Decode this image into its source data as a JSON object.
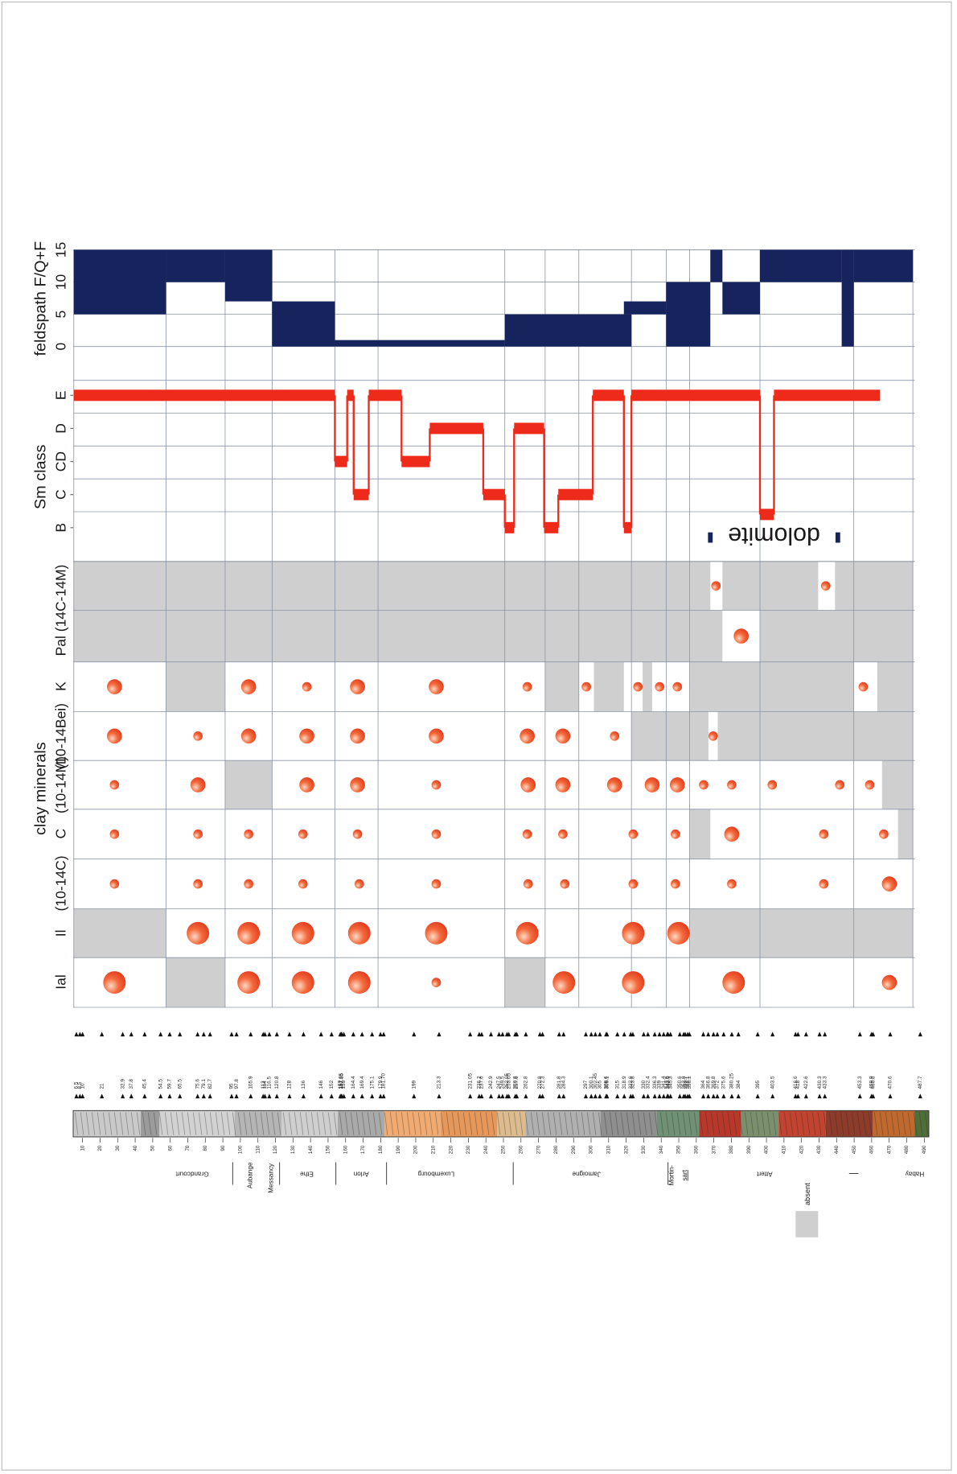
{
  "feldspath": {
    "label": "feldspath F/Q+F",
    "ylim": [
      0,
      15
    ],
    "yticks": [
      0,
      5,
      10,
      15
    ],
    "color": "#17235c",
    "segments": [
      {
        "from": 5,
        "to": 57.6,
        "min": 5,
        "max": 15
      },
      {
        "from": 57.6,
        "to": 91.3,
        "min": 10,
        "max": 15
      },
      {
        "from": 91.3,
        "to": 118.1,
        "min": 7,
        "max": 15
      },
      {
        "from": 118.1,
        "to": 153.9,
        "min": 0,
        "max": 7
      },
      {
        "from": 153.9,
        "to": 250.8,
        "min": 0,
        "max": 1
      },
      {
        "from": 250.8,
        "to": 323,
        "min": 0,
        "max": 5
      },
      {
        "from": 318.7,
        "to": 342.8,
        "min": 5,
        "max": 7
      },
      {
        "from": 342.8,
        "to": 368,
        "min": 0,
        "max": 10
      },
      {
        "from": 368,
        "to": 374.9,
        "min": 10,
        "max": 15
      },
      {
        "from": 374.9,
        "to": 396.3,
        "min": 5,
        "max": 10
      },
      {
        "from": 396.3,
        "to": 442.9,
        "min": 10,
        "max": 15
      },
      {
        "from": 442.9,
        "to": 449.8,
        "min": 0,
        "max": 15
      },
      {
        "from": 449.8,
        "to": 483.5,
        "min": 10,
        "max": 15
      }
    ]
  },
  "sm_class": {
    "label": "Sm class",
    "ylim": [
      0,
      4
    ],
    "yticks": [
      {
        "value": 0,
        "label": "B"
      },
      {
        "value": 1,
        "label": "C"
      },
      {
        "value": 2,
        "label": "CD"
      },
      {
        "value": 3,
        "label": "D"
      },
      {
        "value": 4,
        "label": "E"
      }
    ],
    "color": "#ee2a1b",
    "steps": [
      {
        "from": 5,
        "to": 153.9,
        "value": 4
      },
      {
        "from": 153.9,
        "to": 160.9,
        "value": 2
      },
      {
        "from": 160.9,
        "to": 164.6,
        "value": 4
      },
      {
        "from": 164.6,
        "to": 173.2,
        "value": 1
      },
      {
        "from": 173.2,
        "to": 191.9,
        "value": 4
      },
      {
        "from": 191.9,
        "to": 208,
        "value": 2
      },
      {
        "from": 208,
        "to": 238.5,
        "value": 3
      },
      {
        "from": 238.5,
        "to": 250.8,
        "value": 1
      },
      {
        "from": 250.8,
        "to": 256.1,
        "value": 0
      },
      {
        "from": 256.1,
        "to": 273.2,
        "value": 3
      },
      {
        "from": 273.2,
        "to": 281.3,
        "value": 0
      },
      {
        "from": 281.3,
        "to": 301,
        "value": 1
      },
      {
        "from": 301,
        "to": 318.7,
        "value": 4
      },
      {
        "from": 318.7,
        "to": 323,
        "value": 0
      },
      {
        "from": 323,
        "to": 396.3,
        "value": 4
      },
      {
        "from": 396.3,
        "to": 404.3,
        "value": 0.4
      },
      {
        "from": 404.3,
        "to": 464.8,
        "value": 4
      }
    ],
    "annotation": "dolomite",
    "annotation_range": [
      368,
      440.7
    ],
    "annotation_color": "#17235c"
  },
  "clay": {
    "label": "clay minerals",
    "rows": [
      {
        "name": "Pal (14C-14M)",
        "absent": [
          [
            5,
            368
          ],
          [
            374.9,
            429.5
          ],
          [
            439.1,
            483.5
          ]
        ],
        "points": [
          [
            371.2,
            1
          ],
          [
            433.8,
            1
          ]
        ]
      },
      {
        "name": null,
        "absent": [
          [
            5,
            374.9
          ],
          [
            396.3,
            483.5
          ]
        ],
        "points": [
          [
            385.6,
            2
          ]
        ]
      },
      {
        "name": "K",
        "absent": [
          [
            57.6,
            91.3
          ],
          [
            273.8,
            293
          ],
          [
            301.6,
            318.7
          ],
          [
            329.4,
            334.8
          ],
          [
            356.2,
            449.8
          ],
          [
            463.2,
            483.5
          ]
        ],
        "points": [
          [
            28.2,
            2
          ],
          [
            104.7,
            2
          ],
          [
            137.9,
            1
          ],
          [
            166.8,
            2
          ],
          [
            211.7,
            2
          ],
          [
            263.6,
            1
          ],
          [
            297.3,
            1
          ],
          [
            326.7,
            1
          ],
          [
            339.1,
            1
          ],
          [
            349.2,
            1
          ],
          [
            455.2,
            1
          ]
        ]
      },
      {
        "name": "(10-14Bei)",
        "absent": [
          [
            323,
            366.9
          ],
          [
            372.2,
            483.5
          ]
        ],
        "points": [
          [
            28.2,
            2
          ],
          [
            75.8,
            1
          ],
          [
            104.7,
            2
          ],
          [
            137.9,
            2
          ],
          [
            166.8,
            2
          ],
          [
            211.7,
            2
          ],
          [
            263.6,
            2
          ],
          [
            283.9,
            2
          ],
          [
            313.4,
            1
          ],
          [
            369.6,
            1
          ]
        ]
      },
      {
        "name": "(10-14M)",
        "absent": [
          [
            91.3,
            118.1
          ],
          [
            465.9,
            483.5
          ]
        ],
        "points": [
          [
            28.2,
            1
          ],
          [
            75.8,
            2
          ],
          [
            137.9,
            2
          ],
          [
            166.8,
            2
          ],
          [
            211.7,
            1
          ],
          [
            264.1,
            2
          ],
          [
            283.9,
            2
          ],
          [
            313.4,
            2
          ],
          [
            334.8,
            2
          ],
          [
            349.2,
            2
          ],
          [
            364.2,
            1
          ],
          [
            380.2,
            1
          ],
          [
            403.3,
            1
          ],
          [
            441.8,
            1
          ],
          [
            458.9,
            1
          ]
        ]
      },
      {
        "name": "C",
        "absent": [
          [
            356.2,
            368
          ],
          [
            475,
            483.5
          ]
        ],
        "points": [
          [
            28.2,
            1
          ],
          [
            75.8,
            1
          ],
          [
            104.7,
            1
          ],
          [
            135.7,
            1
          ],
          [
            166.8,
            1
          ],
          [
            211.7,
            1
          ],
          [
            263.6,
            1
          ],
          [
            283.9,
            1
          ],
          [
            324,
            1
          ],
          [
            348.1,
            1
          ],
          [
            380.2,
            2
          ],
          [
            432.7,
            1
          ],
          [
            466.9,
            1
          ]
        ]
      },
      {
        "name": "(10-14C)",
        "absent": [],
        "points": [
          [
            28.2,
            1
          ],
          [
            75.8,
            1
          ],
          [
            104.7,
            1
          ],
          [
            135.7,
            1
          ],
          [
            167.8,
            1
          ],
          [
            211.7,
            1
          ],
          [
            264.1,
            1
          ],
          [
            285,
            1
          ],
          [
            324,
            1
          ],
          [
            348.1,
            1
          ],
          [
            380.2,
            1
          ],
          [
            432.7,
            1
          ],
          [
            470.1,
            2
          ]
        ]
      },
      {
        "name": "Il",
        "absent": [
          [
            5,
            57.6
          ],
          [
            356.2,
            483.5
          ]
        ],
        "points": [
          [
            75.8,
            3
          ],
          [
            104.7,
            3
          ],
          [
            135.7,
            3
          ],
          [
            167.8,
            3
          ],
          [
            211.7,
            3
          ],
          [
            263.6,
            3
          ],
          [
            324,
            3
          ],
          [
            349.8,
            3
          ]
        ]
      },
      {
        "name": "Ial",
        "absent": [
          [
            57.6,
            91.3
          ],
          [
            250.8,
            273.8
          ]
        ],
        "points": [
          [
            28.2,
            3
          ],
          [
            104.7,
            3
          ],
          [
            135.7,
            3
          ],
          [
            167.8,
            3
          ],
          [
            211.7,
            1
          ],
          [
            284.5,
            3
          ],
          [
            324,
            3
          ],
          [
            381.3,
            3
          ],
          [
            470.1,
            2
          ]
        ]
      }
    ]
  },
  "samples": [
    "6.5",
    "8.5",
    "10",
    "21",
    "32.9",
    "37.8",
    "45.4",
    "54.5",
    "59.7",
    "65.5",
    "75.6",
    "79.1",
    "82.7",
    "95",
    "97.8",
    "105.9",
    "113",
    "114",
    "116.5",
    "120.8",
    "128",
    "136",
    "146",
    "152",
    "157",
    "157.55",
    "157.85",
    "159",
    "164.4",
    "169.4",
    "175.1",
    "179.9",
    "181.70",
    "199",
    "213.3",
    "231.05",
    "236.2",
    "237.6",
    "242.9",
    "247.5",
    "249.5",
    "252.05",
    "253.05",
    "256.8",
    "257.6",
    "262.8",
    "270.8",
    "272.3",
    "281.8",
    "284.3",
    "297",
    "300.1",
    "302.45",
    "305",
    "308.6",
    "309.1",
    "315",
    "318.9",
    "322.6",
    "323.8",
    "330",
    "332.4",
    "336.3",
    "339",
    "341.4",
    "343.5",
    "343.9",
    "345.3",
    "350.6",
    "352.8",
    "353.7",
    "355.1",
    "356.1",
    "364",
    "366.8",
    "369.8",
    "372",
    "375.6",
    "380.25",
    "384",
    "395",
    "403.5",
    "416.6",
    "418",
    "422.6",
    "430.3",
    "433.3",
    "453.3",
    "459.9",
    "460.8",
    "470.6",
    "487.7"
  ],
  "depth_ticks": [
    10,
    20,
    30,
    40,
    50,
    60,
    70,
    80,
    90,
    100,
    110,
    120,
    130,
    140,
    150,
    160,
    170,
    180,
    190,
    200,
    210,
    220,
    230,
    240,
    250,
    260,
    270,
    280,
    290,
    300,
    310,
    320,
    330,
    340,
    350,
    360,
    370,
    380,
    390,
    400,
    410,
    420,
    430,
    440,
    450,
    460,
    470,
    480,
    490
  ],
  "formations": [
    "Grandcourt",
    "Aubange",
    "Messancy",
    "Ethe",
    "Arlon",
    "Luxembourg",
    "Jamoigne",
    "Mortin-",
    "sart",
    "Attert",
    "Habay"
  ],
  "legend": {
    "label": "absent",
    "color": "#cfcfcf"
  }
}
